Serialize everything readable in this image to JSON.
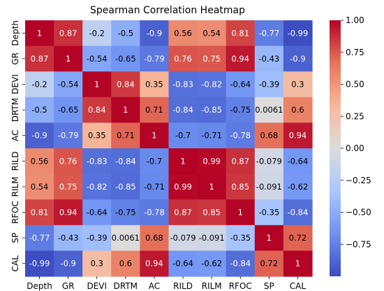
{
  "chart_data": {
    "type": "heatmap",
    "title": "Spearman Correlation Heatmap",
    "xlabel": "",
    "ylabel": "",
    "x_labels": [
      "Depth",
      "GR",
      "DEVI",
      "DRTM",
      "AC",
      "RILD",
      "RILM",
      "RFOC",
      "SP",
      "CAL"
    ],
    "y_labels": [
      "Depth",
      "GR",
      "DEVI",
      "DRTM",
      "AC",
      "RILD",
      "RILM",
      "RFOC",
      "SP",
      "CAL"
    ],
    "values": [
      [
        1,
        0.87,
        -0.2,
        -0.5,
        -0.9,
        0.56,
        0.54,
        0.81,
        -0.77,
        -0.99
      ],
      [
        0.87,
        1,
        -0.54,
        -0.65,
        -0.79,
        0.76,
        0.75,
        0.94,
        -0.43,
        -0.9
      ],
      [
        -0.2,
        -0.54,
        1,
        0.84,
        0.35,
        -0.83,
        -0.82,
        -0.64,
        -0.39,
        0.3
      ],
      [
        -0.5,
        -0.65,
        0.84,
        1,
        0.71,
        -0.84,
        -0.85,
        -0.75,
        0.0061,
        0.6
      ],
      [
        -0.9,
        -0.79,
        0.35,
        0.71,
        1,
        -0.7,
        -0.71,
        -0.78,
        0.68,
        0.94
      ],
      [
        0.56,
        0.76,
        -0.83,
        -0.84,
        -0.7,
        1,
        0.99,
        0.87,
        -0.079,
        -0.64
      ],
      [
        0.54,
        0.75,
        -0.82,
        -0.85,
        -0.71,
        0.99,
        1,
        0.85,
        -0.091,
        -0.62
      ],
      [
        0.81,
        0.94,
        -0.64,
        -0.75,
        -0.78,
        0.87,
        0.85,
        1,
        -0.35,
        -0.84
      ],
      [
        -0.77,
        -0.43,
        -0.39,
        0.0061,
        0.68,
        -0.079,
        -0.091,
        -0.35,
        1,
        0.72
      ],
      [
        -0.99,
        -0.9,
        0.3,
        0.6,
        0.94,
        -0.64,
        -0.62,
        -0.84,
        0.72,
        1
      ]
    ],
    "value_labels": [
      [
        "1",
        "0.87",
        "-0.2",
        "-0.5",
        "-0.9",
        "0.56",
        "0.54",
        "0.81",
        "-0.77",
        "-0.99"
      ],
      [
        "0.87",
        "1",
        "-0.54",
        "-0.65",
        "-0.79",
        "0.76",
        "0.75",
        "0.94",
        "-0.43",
        "-0.9"
      ],
      [
        "-0.2",
        "-0.54",
        "1",
        "0.84",
        "0.35",
        "-0.83",
        "-0.82",
        "-0.64",
        "-0.39",
        "0.3"
      ],
      [
        "-0.5",
        "-0.65",
        "0.84",
        "1",
        "0.71",
        "-0.84",
        "-0.85",
        "-0.75",
        "0.0061",
        "0.6"
      ],
      [
        "-0.9",
        "-0.79",
        "0.35",
        "0.71",
        "1",
        "-0.7",
        "-0.71",
        "-0.78",
        "0.68",
        "0.94"
      ],
      [
        "0.56",
        "0.76",
        "-0.83",
        "-0.84",
        "-0.7",
        "1",
        "0.99",
        "0.87",
        "-0.079",
        "-0.64"
      ],
      [
        "0.54",
        "0.75",
        "-0.82",
        "-0.85",
        "-0.71",
        "0.99",
        "1",
        "0.85",
        "-0.091",
        "-0.62"
      ],
      [
        "0.81",
        "0.94",
        "-0.64",
        "-0.75",
        "-0.78",
        "0.87",
        "0.85",
        "1",
        "-0.35",
        "-0.84"
      ],
      [
        "-0.77",
        "-0.43",
        "-0.39",
        "0.0061",
        "0.68",
        "-0.079",
        "-0.091",
        "-0.35",
        "1",
        "0.72"
      ],
      [
        "-0.99",
        "-0.9",
        "0.3",
        "0.6",
        "0.94",
        "-0.64",
        "-0.62",
        "-0.84",
        "0.72",
        "1"
      ]
    ],
    "vmin": -1,
    "vmax": 1,
    "colormap": "coolwarm",
    "colormap_stops": [
      "#3b4cc0",
      "#6f92f3",
      "#aac7fd",
      "#dddcdc",
      "#f7b89c",
      "#e7745b",
      "#b40426"
    ],
    "colorbar_ticks": [
      1.0,
      0.75,
      0.5,
      0.25,
      0.0,
      -0.25,
      -0.5,
      -0.75
    ],
    "colorbar_tick_labels": [
      "1.00",
      "0.75",
      "0.50",
      "0.25",
      "0.00",
      "−0.25",
      "−0.50",
      "−0.75"
    ],
    "annotations": true,
    "grid": false,
    "legend": "colorbar-right"
  }
}
